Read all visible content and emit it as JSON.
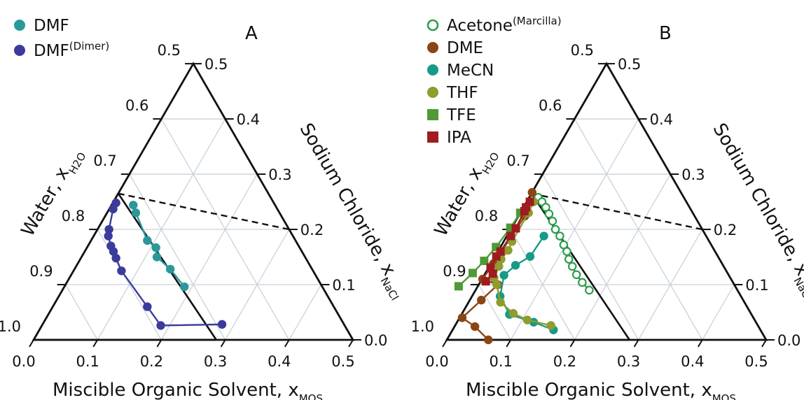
{
  "chart_data": [
    {
      "type": "scatter",
      "panel_label": "A",
      "ternary": true,
      "xlabel": "Miscible Organic Solvent, x",
      "xlabel_sub": "MOS",
      "left_label": "Water, x",
      "left_label_sub": "H2O",
      "right_label": "Sodium Chloride, x",
      "right_label_sub": "NaCl",
      "bottom_ticks": [
        "0.0",
        "0.1",
        "0.2",
        "0.3",
        "0.4",
        "0.5"
      ],
      "left_ticks": [
        "0.5",
        "0.6",
        "0.7",
        "0.8",
        "0.9",
        "1.0"
      ],
      "right_ticks": [
        "0.5",
        "0.4",
        "0.3",
        "0.2",
        "0.1",
        "0.0"
      ],
      "reference_lines": [
        {
          "style": "solid",
          "from": {
            "mos": 0.0,
            "nacl": 0.0
          },
          "to": {
            "mos": 0.286,
            "nacl": 0.0
          }
        },
        {
          "style": "solid",
          "from": {
            "mos": 0.286,
            "nacl": 0.0
          },
          "to": {
            "mos": 0.0,
            "nacl": 0.265
          }
        },
        {
          "style": "dashed",
          "from": {
            "mos": 0.0,
            "nacl": 0.265
          },
          "to": {
            "mos": 0.0,
            "nacl": 0.2
          }
        }
      ],
      "series": [
        {
          "name": "DMF",
          "color": "#2a9898",
          "marker": "circle",
          "points": [
            {
              "mos": 0.034,
              "nacl": 0.244
            },
            {
              "mos": 0.045,
              "nacl": 0.23
            },
            {
              "mos": 0.088,
              "nacl": 0.18
            },
            {
              "mos": 0.108,
              "nacl": 0.167
            },
            {
              "mos": 0.118,
              "nacl": 0.15
            },
            {
              "mos": 0.15,
              "nacl": 0.128
            },
            {
              "mos": 0.188,
              "nacl": 0.096
            }
          ]
        },
        {
          "name": "DMF",
          "name_sup": "(Dimer)",
          "color": "#3b3b9c",
          "marker": "circle",
          "points": [
            {
              "mos": 0.005,
              "nacl": 0.248
            },
            {
              "mos": 0.006,
              "nacl": 0.237
            },
            {
              "mos": 0.018,
              "nacl": 0.2
            },
            {
              "mos": 0.023,
              "nacl": 0.188
            },
            {
              "mos": 0.036,
              "nacl": 0.17
            },
            {
              "mos": 0.045,
              "nacl": 0.16
            },
            {
              "mos": 0.055,
              "nacl": 0.148
            },
            {
              "mos": 0.075,
              "nacl": 0.125
            },
            {
              "mos": 0.148,
              "nacl": 0.06
            },
            {
              "mos": 0.186,
              "nacl": 0.026
            },
            {
              "mos": 0.281,
              "nacl": 0.028
            }
          ]
        }
      ],
      "colors": {
        "axes": "#111111",
        "grid": "#c9d2dc"
      }
    },
    {
      "type": "scatter",
      "panel_label": "B",
      "ternary": true,
      "xlabel": "Miscible Organic Solvent, x",
      "xlabel_sub": "MOS",
      "left_label": "Water, x",
      "left_label_sub": "H2O",
      "right_label": "Sodium Chloride, x",
      "right_label_sub": "NaCl",
      "bottom_ticks": [
        "0.0",
        "0.1",
        "0.2",
        "0.3",
        "0.4",
        "0.5"
      ],
      "left_ticks": [
        "0.5",
        "0.6",
        "0.7",
        "0.8",
        "0.9",
        "1.0"
      ],
      "right_ticks": [
        "0.5",
        "0.4",
        "0.3",
        "0.2",
        "0.1",
        "0.0"
      ],
      "series": [
        {
          "name": "Acetone",
          "name_sup": "(Marcilla)",
          "color": "#2e9e4f",
          "marker": "open-circle",
          "points": [
            {
              "mos": 0.014,
              "nacl": 0.258
            },
            {
              "mos": 0.024,
              "nacl": 0.25
            },
            {
              "mos": 0.035,
              "nacl": 0.24
            },
            {
              "mos": 0.046,
              "nacl": 0.228
            },
            {
              "mos": 0.058,
              "nacl": 0.215
            },
            {
              "mos": 0.07,
              "nacl": 0.2
            },
            {
              "mos": 0.083,
              "nacl": 0.188
            },
            {
              "mos": 0.097,
              "nacl": 0.172
            },
            {
              "mos": 0.108,
              "nacl": 0.16
            },
            {
              "mos": 0.118,
              "nacl": 0.146
            },
            {
              "mos": 0.13,
              "nacl": 0.133
            },
            {
              "mos": 0.144,
              "nacl": 0.118
            },
            {
              "mos": 0.16,
              "nacl": 0.104
            },
            {
              "mos": 0.178,
              "nacl": 0.09
            }
          ]
        },
        {
          "name": "DME",
          "color": "#8b4513",
          "marker": "circle",
          "points": [
            {
              "mos": 0.0,
              "nacl": 0.267
            },
            {
              "mos": 0.01,
              "nacl": 0.224
            },
            {
              "mos": 0.004,
              "nacl": 0.138
            },
            {
              "mos": 0.001,
              "nacl": 0.11
            },
            {
              "mos": 0.03,
              "nacl": 0.1
            },
            {
              "mos": 0.018,
              "nacl": 0.072
            },
            {
              "mos": 0.004,
              "nacl": 0.04
            },
            {
              "mos": 0.032,
              "nacl": 0.024
            },
            {
              "mos": 0.065,
              "nacl": 0.0
            }
          ]
        },
        {
          "name": "MeCN",
          "color": "#179a87",
          "marker": "circle",
          "points": [
            {
              "mos": 0.058,
              "nacl": 0.188
            },
            {
              "mos": 0.055,
              "nacl": 0.151
            },
            {
              "mos": 0.04,
              "nacl": 0.135
            },
            {
              "mos": 0.031,
              "nacl": 0.117
            },
            {
              "mos": 0.044,
              "nacl": 0.079
            },
            {
              "mos": 0.075,
              "nacl": 0.046
            },
            {
              "mos": 0.12,
              "nacl": 0.032
            },
            {
              "mos": 0.158,
              "nacl": 0.018
            }
          ]
        },
        {
          "name": "THF",
          "color": "#8f9c2e",
          "marker": "circle",
          "points": [
            {
              "mos": 0.011,
              "nacl": 0.25
            },
            {
              "mos": 0.013,
              "nacl": 0.23
            },
            {
              "mos": 0.013,
              "nacl": 0.178
            },
            {
              "mos": 0.015,
              "nacl": 0.162
            },
            {
              "mos": 0.012,
              "nacl": 0.146
            },
            {
              "mos": 0.015,
              "nacl": 0.133
            },
            {
              "mos": 0.018,
              "nacl": 0.112
            },
            {
              "mos": 0.028,
              "nacl": 0.1
            },
            {
              "mos": 0.05,
              "nacl": 0.068
            },
            {
              "mos": 0.08,
              "nacl": 0.048
            },
            {
              "mos": 0.108,
              "nacl": 0.036
            },
            {
              "mos": 0.15,
              "nacl": 0.026
            }
          ]
        },
        {
          "name": "TFE",
          "color": "#4f9a36",
          "marker": "square",
          "points": [
            {
              "mos": 0.0,
              "nacl": 0.23
            },
            {
              "mos": -0.002,
              "nacl": 0.203
            },
            {
              "mos": -0.007,
              "nacl": 0.168
            },
            {
              "mos": -0.013,
              "nacl": 0.143
            },
            {
              "mos": -0.02,
              "nacl": 0.121
            },
            {
              "mos": -0.03,
              "nacl": 0.097
            }
          ]
        },
        {
          "name": "IPA",
          "color": "#9e1b1f",
          "marker": "square",
          "points": [
            {
              "mos": 0.005,
              "nacl": 0.25
            },
            {
              "mos": 0.004,
              "nacl": 0.24
            },
            {
              "mos": 0.005,
              "nacl": 0.233
            },
            {
              "mos": 0.007,
              "nacl": 0.202
            },
            {
              "mos": 0.006,
              "nacl": 0.188
            },
            {
              "mos": 0.004,
              "nacl": 0.16
            },
            {
              "mos": 0.002,
              "nacl": 0.151
            },
            {
              "mos": 0.003,
              "nacl": 0.131
            },
            {
              "mos": 0.012,
              "nacl": 0.12
            },
            {
              "mos": 0.008,
              "nacl": 0.106
            }
          ]
        }
      ],
      "reference_lines": [
        {
          "style": "solid",
          "from": {
            "mos": 0.0,
            "nacl": 0.0
          },
          "to": {
            "mos": 0.286,
            "nacl": 0.0
          }
        },
        {
          "style": "solid",
          "from": {
            "mos": 0.286,
            "nacl": 0.0
          },
          "to": {
            "mos": 0.0,
            "nacl": 0.265
          }
        },
        {
          "style": "dashed",
          "from": {
            "mos": 0.0,
            "nacl": 0.265
          },
          "to": {
            "mos": 0.0,
            "nacl": 0.2
          }
        }
      ],
      "colors": {
        "axes": "#111111",
        "grid": "#c9d2dc"
      }
    }
  ]
}
